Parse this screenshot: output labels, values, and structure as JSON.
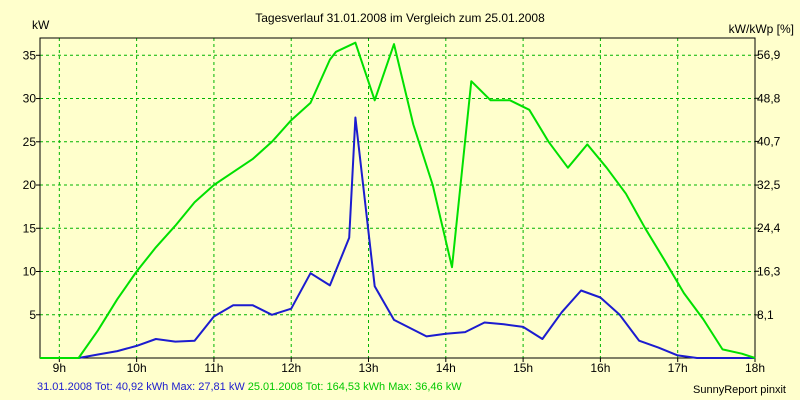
{
  "chart_data": {
    "type": "line",
    "title": "Tagesverlauf 31.01.2008 im Vergleich zum 25.01.2008",
    "ylabel": "kW",
    "ylabel_right": "kW/kWp [%]",
    "xlim": [
      8.75,
      18.0
    ],
    "ylim": [
      0,
      37
    ],
    "ylim_right": [
      0,
      60.13
    ],
    "x_ticks": [
      {
        "value": 9,
        "label": "9h"
      },
      {
        "value": 10,
        "label": "10h"
      },
      {
        "value": 11,
        "label": "11h"
      },
      {
        "value": 12,
        "label": "12h"
      },
      {
        "value": 13,
        "label": "13h"
      },
      {
        "value": 14,
        "label": "14h"
      },
      {
        "value": 15,
        "label": "15h"
      },
      {
        "value": 16,
        "label": "16h"
      },
      {
        "value": 17,
        "label": "17h"
      },
      {
        "value": 18,
        "label": "18h"
      }
    ],
    "y_ticks": [
      5,
      10,
      15,
      20,
      25,
      30,
      35
    ],
    "y_ticks_right": [
      "8,1",
      "16,3",
      "24,4",
      "32,5",
      "40,7",
      "48,8",
      "56,9"
    ],
    "grid": true,
    "legend_position": "bottom-left",
    "series": [
      {
        "name": "31.01.2008",
        "color": "#1c1ccf",
        "x": [
          8.75,
          9.25,
          9.5,
          9.75,
          10.0,
          10.25,
          10.5,
          10.75,
          11.0,
          11.25,
          11.5,
          11.75,
          12.0,
          12.25,
          12.5,
          12.75,
          12.83,
          13.08,
          13.33,
          13.75,
          14.0,
          14.25,
          14.5,
          14.75,
          15.0,
          15.25,
          15.5,
          15.75,
          16.0,
          16.25,
          16.5,
          16.75,
          17.0,
          17.25,
          17.5,
          17.75,
          18.0
        ],
        "values": [
          0,
          0,
          0.4,
          0.8,
          1.4,
          2.2,
          1.9,
          2.0,
          4.8,
          6.1,
          6.1,
          5.0,
          5.7,
          9.8,
          8.4,
          13.9,
          27.81,
          8.3,
          4.4,
          2.5,
          2.8,
          3.0,
          4.1,
          3.9,
          3.6,
          2.2,
          5.3,
          7.8,
          7.0,
          5.0,
          2.0,
          1.2,
          0.3,
          0,
          0,
          0,
          0
        ]
      },
      {
        "name": "25.01.2008",
        "color": "#00e000",
        "x": [
          8.75,
          9.0,
          9.25,
          9.5,
          9.75,
          10.0,
          10.25,
          10.5,
          10.75,
          11.0,
          11.25,
          11.5,
          11.75,
          12.0,
          12.25,
          12.5,
          12.58,
          12.83,
          13.08,
          13.33,
          13.58,
          13.83,
          14.08,
          14.33,
          14.58,
          14.83,
          15.08,
          15.33,
          15.58,
          15.83,
          16.08,
          16.33,
          16.58,
          16.83,
          17.08,
          17.33,
          17.58,
          17.83,
          18.0
        ],
        "values": [
          0,
          0,
          0,
          3.2,
          6.8,
          10.0,
          12.8,
          15.3,
          18.0,
          20.0,
          21.5,
          23.0,
          25.0,
          27.5,
          29.5,
          34.5,
          35.4,
          36.46,
          29.8,
          36.3,
          27.0,
          20.0,
          10.5,
          32.0,
          29.8,
          29.8,
          28.7,
          25.0,
          22.0,
          24.7,
          22.0,
          19.0,
          15.0,
          11.3,
          7.5,
          4.5,
          1.0,
          0.5,
          0
        ]
      }
    ]
  },
  "footer": {
    "legend_blue": "31.01.2008 Tot: 40,92 kWh Max: 27,81 kW",
    "legend_green": "25.01.2008 Tot: 164,53 kWh Max: 36,46 kW",
    "brand": "SunnyReport pinxit"
  }
}
